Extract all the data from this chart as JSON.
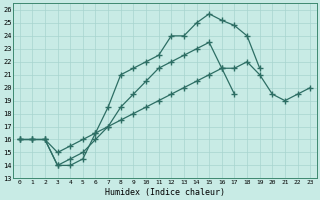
{
  "xlabel": "Humidex (Indice chaleur)",
  "ylabel": "",
  "bg_color": "#c8ebe5",
  "grid_color": "#a8d5cf",
  "line_color": "#2d6e64",
  "marker": "+",
  "markersize": 4,
  "linewidth": 0.9,
  "xlim": [
    -0.5,
    23.5
  ],
  "ylim": [
    13,
    26.5
  ],
  "xticks": [
    0,
    1,
    2,
    3,
    4,
    5,
    6,
    7,
    8,
    9,
    10,
    11,
    12,
    13,
    14,
    15,
    16,
    17,
    18,
    19,
    20,
    21,
    22,
    23
  ],
  "yticks": [
    13,
    14,
    15,
    16,
    17,
    18,
    19,
    20,
    21,
    22,
    23,
    24,
    25,
    26
  ],
  "series": [
    [
      16,
      16,
      16,
      14,
      14,
      14.5,
      16.5,
      18.5,
      21,
      21.5,
      22,
      22.5,
      24,
      24,
      25,
      25.7,
      25.2,
      24.8,
      24,
      21.5,
      null,
      null,
      null,
      null
    ],
    [
      16,
      16,
      16,
      14,
      14.5,
      15,
      16,
      17,
      18.5,
      19.5,
      20.5,
      21.5,
      22,
      22.5,
      23,
      23.5,
      21.5,
      19.5,
      null,
      null,
      null,
      null,
      null,
      null
    ],
    [
      16,
      16,
      16,
      15,
      15.5,
      16,
      16.5,
      17,
      17.5,
      18,
      18.5,
      19,
      19.5,
      20,
      20.5,
      21,
      21.5,
      21.5,
      22,
      21,
      19.5,
      19,
      19.5,
      20
    ]
  ]
}
